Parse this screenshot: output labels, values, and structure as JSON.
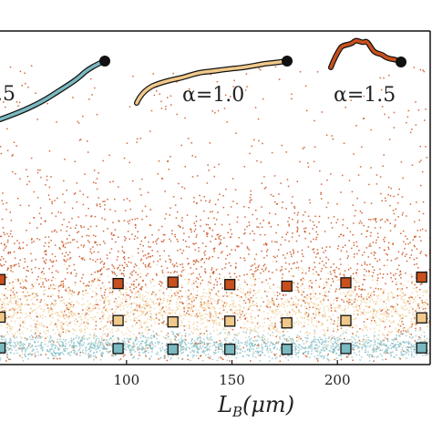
{
  "chart_data": {
    "type": "scatter",
    "title": "",
    "xlabel": "L_B(μm)",
    "xlabel_parts": {
      "main": "L",
      "sub": "B",
      "rest": "(μm)"
    },
    "ylabel": "",
    "xlim": [
      40,
      244
    ],
    "ylim": [
      0,
      1
    ],
    "xticks": [
      100,
      150,
      200
    ],
    "xtick_labels": [
      "100",
      "150",
      "200"
    ],
    "grid": false,
    "colors": {
      "alpha_0_5": "#7ab9c0",
      "alpha_1_0": "#f0c98a",
      "alpha_1_5": "#c9501c",
      "frame": "#111111"
    },
    "trajectory_labels": [
      {
        "text": ".5",
        "alpha": 0.5
      },
      {
        "text": "α=1.0",
        "alpha": 1.0
      },
      {
        "text": "α=1.5",
        "alpha": 1.5
      }
    ],
    "series": [
      {
        "alpha": 1.5,
        "color": "#c9501c",
        "point_cloud": {
          "y_center": 0.27,
          "y_spread": 0.13,
          "y_max": 0.9,
          "count": 2200
        },
        "mean_markers": [
          {
            "x": 40,
            "y": 0.255
          },
          {
            "x": 96,
            "y": 0.243
          },
          {
            "x": 122,
            "y": 0.247
          },
          {
            "x": 149,
            "y": 0.24
          },
          {
            "x": 176,
            "y": 0.235
          },
          {
            "x": 204,
            "y": 0.245
          },
          {
            "x": 240,
            "y": 0.262
          }
        ]
      },
      {
        "alpha": 1.0,
        "color": "#f0c98a",
        "point_cloud": {
          "y_center": 0.16,
          "y_spread": 0.05,
          "y_max": 0.35,
          "count": 2000
        },
        "mean_markers": [
          {
            "x": 40,
            "y": 0.142
          },
          {
            "x": 96,
            "y": 0.132
          },
          {
            "x": 122,
            "y": 0.128
          },
          {
            "x": 149,
            "y": 0.13
          },
          {
            "x": 176,
            "y": 0.125
          },
          {
            "x": 204,
            "y": 0.132
          },
          {
            "x": 240,
            "y": 0.14
          }
        ]
      },
      {
        "alpha": 0.5,
        "color": "#7ab9c0",
        "point_cloud": {
          "y_center": 0.055,
          "y_spread": 0.018,
          "y_max": 0.12,
          "count": 1600
        },
        "mean_markers": [
          {
            "x": 40,
            "y": 0.05
          },
          {
            "x": 96,
            "y": 0.048
          },
          {
            "x": 122,
            "y": 0.046
          },
          {
            "x": 149,
            "y": 0.046
          },
          {
            "x": 176,
            "y": 0.046
          },
          {
            "x": 204,
            "y": 0.048
          },
          {
            "x": 240,
            "y": 0.05
          }
        ]
      }
    ]
  }
}
